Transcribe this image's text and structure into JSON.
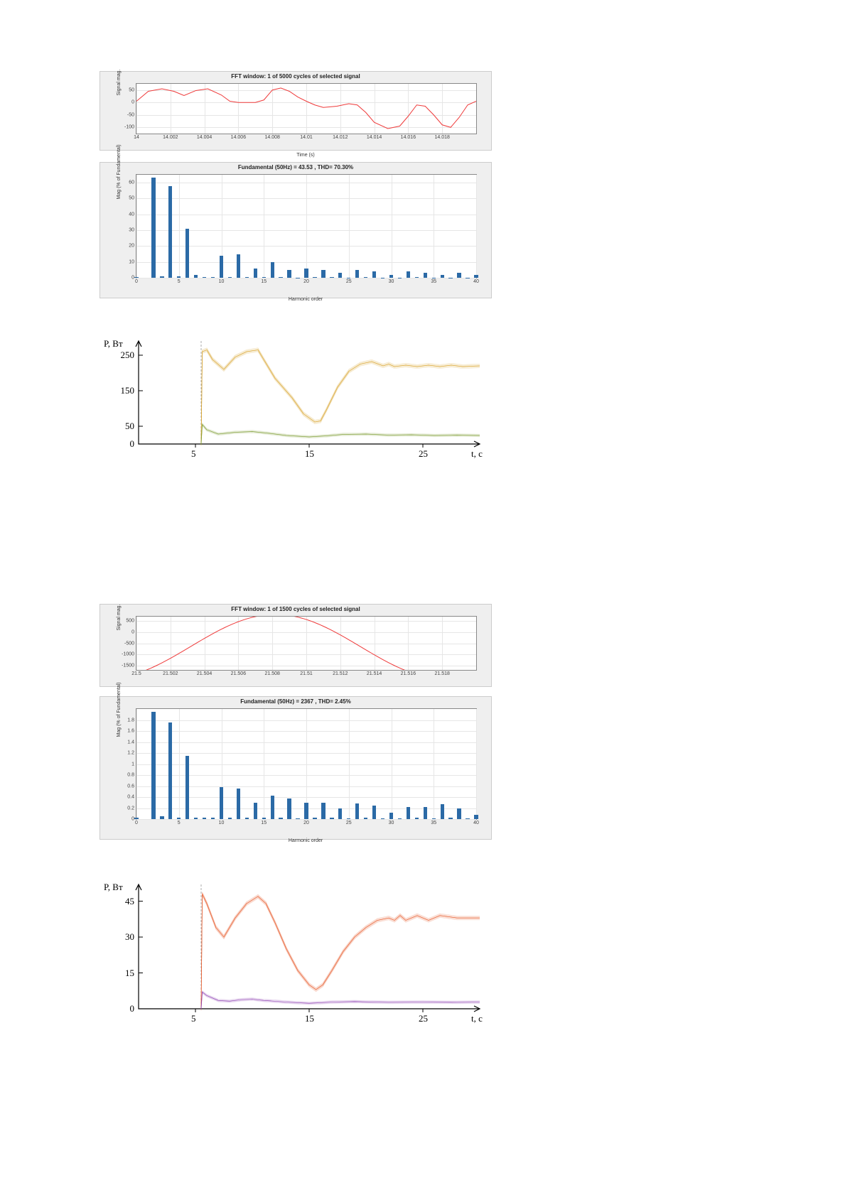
{
  "fig1": {
    "title": "FFT window: 1 of 5000 cycles of selected signal",
    "ylabel": "Signal mag.",
    "xlabel": "Time (s)",
    "background": "#efefef",
    "plot_bg": "#ffffff",
    "grid_color": "#e6e6e6",
    "line_color": "#ef3a3a",
    "line_width": 1,
    "xticks": [
      "14",
      "14.002",
      "14.004",
      "14.006",
      "14.008",
      "14.01",
      "14.012",
      "14.014",
      "14.016",
      "14.018"
    ],
    "yticks": [
      "-100",
      "-50",
      "0",
      "50"
    ],
    "ylim": [
      -125,
      75
    ],
    "xlim": [
      14.0,
      14.02
    ],
    "points": [
      [
        14.0,
        5
      ],
      [
        14.0007,
        45
      ],
      [
        14.0015,
        55
      ],
      [
        14.0022,
        45
      ],
      [
        14.0028,
        28
      ],
      [
        14.0035,
        48
      ],
      [
        14.0042,
        55
      ],
      [
        14.005,
        30
      ],
      [
        14.0055,
        5
      ],
      [
        14.006,
        0
      ],
      [
        14.0065,
        0
      ],
      [
        14.007,
        0
      ],
      [
        14.0075,
        10
      ],
      [
        14.008,
        50
      ],
      [
        14.0085,
        58
      ],
      [
        14.009,
        45
      ],
      [
        14.0095,
        22
      ],
      [
        14.01,
        5
      ],
      [
        14.0105,
        -10
      ],
      [
        14.011,
        -20
      ],
      [
        14.0118,
        -15
      ],
      [
        14.0125,
        -5
      ],
      [
        14.013,
        -10
      ],
      [
        14.0135,
        -40
      ],
      [
        14.014,
        -80
      ],
      [
        14.0148,
        -105
      ],
      [
        14.0155,
        -95
      ],
      [
        14.016,
        -55
      ],
      [
        14.0165,
        -10
      ],
      [
        14.017,
        -15
      ],
      [
        14.0175,
        -50
      ],
      [
        14.018,
        -90
      ],
      [
        14.0185,
        -100
      ],
      [
        14.019,
        -60
      ],
      [
        14.0195,
        -10
      ],
      [
        14.02,
        5
      ]
    ]
  },
  "fig2": {
    "title": "Fundamental (50Hz) = 43.53 , THD= 70.30%",
    "ylabel": "Mag (% of Fundamental)",
    "xlabel": "Harmonic order",
    "background": "#efefef",
    "plot_bg": "#ffffff",
    "grid_color": "#e6e6e6",
    "bar_color": "#2b6aa6",
    "bar_width_ratio": 0.45,
    "xticks": [
      "0",
      "5",
      "10",
      "15",
      "20",
      "25",
      "30",
      "35",
      "40"
    ],
    "yticks": [
      "0",
      "10",
      "20",
      "30",
      "40",
      "50",
      "60"
    ],
    "ylim": [
      0,
      65
    ],
    "xlim": [
      0,
      40
    ],
    "bars": [
      [
        0,
        0.5
      ],
      [
        1,
        0
      ],
      [
        2,
        63
      ],
      [
        3,
        1
      ],
      [
        4,
        58
      ],
      [
        5,
        0.8
      ],
      [
        6,
        31
      ],
      [
        7,
        2
      ],
      [
        8,
        0.3
      ],
      [
        9,
        0.5
      ],
      [
        10,
        14
      ],
      [
        11,
        0.3
      ],
      [
        12,
        15
      ],
      [
        13,
        0.5
      ],
      [
        14,
        6
      ],
      [
        15,
        0.3
      ],
      [
        16,
        10
      ],
      [
        17,
        0.3
      ],
      [
        18,
        5
      ],
      [
        19,
        0.2
      ],
      [
        20,
        6
      ],
      [
        21,
        0.3
      ],
      [
        22,
        5
      ],
      [
        23,
        0.3
      ],
      [
        24,
        3
      ],
      [
        25,
        0.2
      ],
      [
        26,
        5
      ],
      [
        27,
        0.3
      ],
      [
        28,
        4
      ],
      [
        29,
        0.2
      ],
      [
        30,
        2
      ],
      [
        31,
        0.2
      ],
      [
        32,
        4
      ],
      [
        33,
        0.3
      ],
      [
        34,
        3
      ],
      [
        35,
        0.2
      ],
      [
        36,
        2
      ],
      [
        37,
        0.2
      ],
      [
        38,
        3
      ],
      [
        39,
        0.2
      ],
      [
        40,
        2
      ]
    ]
  },
  "fig3": {
    "ylabel": "P, Вт",
    "xlabel": "t, с",
    "axis_color": "#000000",
    "series1_color": "#d9a32b",
    "series2_color": "#7a9a2e",
    "yticks": [
      0,
      50,
      150,
      250
    ],
    "xticks": [
      5,
      15,
      25
    ],
    "ylim": [
      0,
      290
    ],
    "xlim": [
      0,
      30
    ],
    "start_x": 5.5,
    "series1": [
      [
        5.5,
        0
      ],
      [
        5.6,
        260
      ],
      [
        6.0,
        265
      ],
      [
        6.5,
        238
      ],
      [
        7.5,
        210
      ],
      [
        8.5,
        245
      ],
      [
        9.5,
        260
      ],
      [
        10.5,
        265
      ],
      [
        11.0,
        238
      ],
      [
        12.0,
        185
      ],
      [
        13.5,
        130
      ],
      [
        14.5,
        85
      ],
      [
        15.5,
        62
      ],
      [
        16.0,
        65
      ],
      [
        16.5,
        95
      ],
      [
        17.5,
        160
      ],
      [
        18.5,
        205
      ],
      [
        19.5,
        225
      ],
      [
        20.5,
        232
      ],
      [
        21.5,
        220
      ],
      [
        22.0,
        225
      ],
      [
        22.5,
        218
      ],
      [
        23.5,
        222
      ],
      [
        24.5,
        218
      ],
      [
        25.5,
        222
      ],
      [
        26.5,
        218
      ],
      [
        27.5,
        222
      ],
      [
        28.5,
        218
      ],
      [
        30,
        220
      ]
    ],
    "series2": [
      [
        5.5,
        0
      ],
      [
        5.6,
        55
      ],
      [
        6.0,
        40
      ],
      [
        7.0,
        28
      ],
      [
        8.5,
        33
      ],
      [
        10.0,
        35
      ],
      [
        11.5,
        30
      ],
      [
        13.0,
        24
      ],
      [
        15.0,
        20
      ],
      [
        16.5,
        23
      ],
      [
        18.0,
        27
      ],
      [
        20.0,
        28
      ],
      [
        22.0,
        25
      ],
      [
        24.0,
        26
      ],
      [
        26.0,
        24
      ],
      [
        28.0,
        25
      ],
      [
        30,
        24
      ]
    ]
  },
  "fig4": {
    "title": "FFT window: 1 of 1500 cycles of selected signal",
    "ylabel": "Signal mag.",
    "xlabel": "",
    "background": "#efefef",
    "plot_bg": "#ffffff",
    "grid_color": "#e6e6e6",
    "line_color": "#ef3a3a",
    "line_width": 1,
    "xticks": [
      "21.5",
      "21.502",
      "21.504",
      "21.506",
      "21.508",
      "21.51",
      "21.512",
      "21.514",
      "21.516",
      "21.518"
    ],
    "yticks": [
      "-1500",
      "-1000",
      "-500",
      "0",
      "500"
    ],
    "ylim": [
      -1700,
      700
    ],
    "xlim": [
      21.5,
      21.52
    ],
    "is_sine": true,
    "sine_amp": 1450,
    "sine_offset": -650,
    "sine_start_phase": -1.0
  },
  "fig5": {
    "title": "Fundamental (50Hz) = 2367 , THD= 2.45%",
    "ylabel": "Mag (% of Fundamental)",
    "xlabel": "Harmonic order",
    "background": "#efefef",
    "plot_bg": "#ffffff",
    "grid_color": "#e6e6e6",
    "bar_color": "#2b6aa6",
    "bar_width_ratio": 0.45,
    "xticks": [
      "0",
      "5",
      "10",
      "15",
      "20",
      "25",
      "30",
      "35",
      "40"
    ],
    "yticks": [
      "0",
      "0.2",
      "0.4",
      "0.6",
      "0.8",
      "1",
      "1.2",
      "1.4",
      "1.6",
      "1.8"
    ],
    "ylim": [
      0,
      2.0
    ],
    "xlim": [
      0,
      40
    ],
    "bars": [
      [
        0,
        0.02
      ],
      [
        2,
        1.95
      ],
      [
        3,
        0.05
      ],
      [
        4,
        1.75
      ],
      [
        5,
        0.03
      ],
      [
        6,
        1.15
      ],
      [
        7,
        0.03
      ],
      [
        8,
        0.02
      ],
      [
        9,
        0.02
      ],
      [
        10,
        0.58
      ],
      [
        11,
        0.02
      ],
      [
        12,
        0.55
      ],
      [
        13,
        0.03
      ],
      [
        14,
        0.3
      ],
      [
        15,
        0.02
      ],
      [
        16,
        0.42
      ],
      [
        17,
        0.02
      ],
      [
        18,
        0.38
      ],
      [
        19,
        0.01
      ],
      [
        20,
        0.3
      ],
      [
        21,
        0.02
      ],
      [
        22,
        0.3
      ],
      [
        23,
        0.02
      ],
      [
        24,
        0.2
      ],
      [
        25,
        0.01
      ],
      [
        26,
        0.28
      ],
      [
        27,
        0.02
      ],
      [
        28,
        0.25
      ],
      [
        29,
        0.01
      ],
      [
        30,
        0.12
      ],
      [
        31,
        0.01
      ],
      [
        32,
        0.22
      ],
      [
        33,
        0.02
      ],
      [
        34,
        0.22
      ],
      [
        35,
        0.01
      ],
      [
        36,
        0.27
      ],
      [
        37,
        0.02
      ],
      [
        38,
        0.2
      ],
      [
        39,
        0.01
      ],
      [
        40,
        0.08
      ]
    ]
  },
  "fig6": {
    "ylabel": "P, Вт",
    "xlabel": "t, с",
    "axis_color": "#000000",
    "series1_color": "#e85a2a",
    "series2_color": "#8a3ab0",
    "yticks": [
      0,
      15,
      30,
      45
    ],
    "xticks": [
      5,
      15,
      25
    ],
    "ylim": [
      0,
      52
    ],
    "xlim": [
      0,
      30
    ],
    "start_x": 5.5,
    "series1": [
      [
        5.5,
        0
      ],
      [
        5.6,
        48
      ],
      [
        6.0,
        44
      ],
      [
        6.8,
        34
      ],
      [
        7.5,
        30
      ],
      [
        8.5,
        38
      ],
      [
        9.5,
        44
      ],
      [
        10.5,
        47
      ],
      [
        11.2,
        44
      ],
      [
        12.0,
        36
      ],
      [
        13.0,
        25
      ],
      [
        14.0,
        16
      ],
      [
        15.0,
        10
      ],
      [
        15.6,
        8
      ],
      [
        16.2,
        10
      ],
      [
        17.0,
        16
      ],
      [
        18.0,
        24
      ],
      [
        19.0,
        30
      ],
      [
        20.0,
        34
      ],
      [
        21.0,
        37
      ],
      [
        22.0,
        38
      ],
      [
        22.5,
        37
      ],
      [
        23.0,
        39
      ],
      [
        23.5,
        37
      ],
      [
        24.5,
        39
      ],
      [
        25.5,
        37
      ],
      [
        26.5,
        39
      ],
      [
        28.0,
        38
      ],
      [
        30,
        38
      ]
    ],
    "series2": [
      [
        5.5,
        0
      ],
      [
        5.6,
        7
      ],
      [
        6.0,
        5.5
      ],
      [
        7.0,
        3.5
      ],
      [
        8.0,
        3.2
      ],
      [
        9.0,
        3.8
      ],
      [
        10.0,
        4.0
      ],
      [
        11.0,
        3.5
      ],
      [
        13.0,
        2.8
      ],
      [
        15.0,
        2.3
      ],
      [
        17.0,
        2.8
      ],
      [
        19.0,
        3.0
      ],
      [
        22.0,
        2.7
      ],
      [
        25.0,
        2.8
      ],
      [
        28.0,
        2.7
      ],
      [
        30,
        2.8
      ]
    ]
  }
}
